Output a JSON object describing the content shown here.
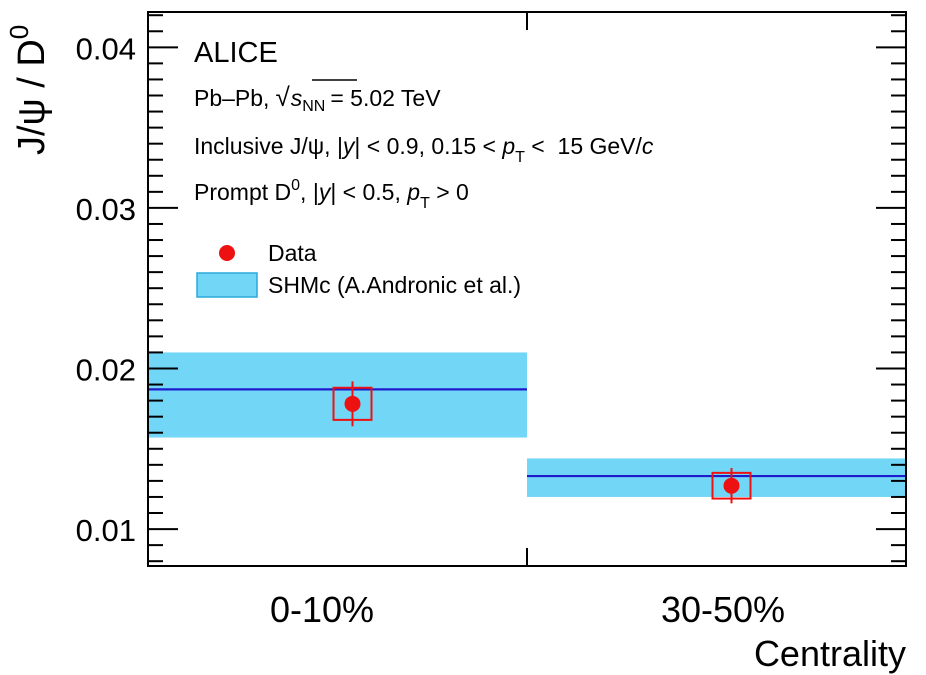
{
  "chart_data": {
    "type": "scatter",
    "experiment": "ALICE",
    "annotations": {
      "system_prefix": "Pb–Pb,",
      "sqrt": "√",
      "s": "s",
      "nn": "NN",
      "energy": "= 5.02 TeV",
      "jpsi_line": {
        "p1": "Inclusive J/ψ, |",
        "y": "y",
        "p2": "| < 0.9, 0.15 < ",
        "p": "p",
        "T": "T",
        "p3": " <  15 GeV/",
        "c": "c"
      },
      "d0_line": {
        "p1": "Prompt D",
        "sup": "0",
        "p2": ", |",
        "y": "y",
        "p3": "| < 0.5, ",
        "p": "p",
        "T": "T",
        "p4": " > 0"
      }
    },
    "ylabel": {
      "main": "J/ψ / D",
      "sup": "0"
    },
    "xlabel": "Centrality",
    "categories": [
      "0-10%",
      "30-50%"
    ],
    "ylim": [
      0.0077,
      0.0422
    ],
    "yticks": [
      0.01,
      0.02,
      0.03,
      0.04
    ],
    "ytick_labels": [
      "0.01",
      "0.02",
      "0.03",
      "0.04"
    ],
    "legend": {
      "position": "upper-left",
      "entries": [
        {
          "label": "Data"
        },
        {
          "label": "SHMc (A.Andronic et al.)"
        }
      ]
    },
    "series": [
      {
        "name": "Data",
        "values": [
          0.0178,
          0.0127
        ],
        "stat_err": [
          0.0014,
          0.0011
        ],
        "syst_err": [
          0.001,
          0.0008
        ],
        "color": "#ee1111"
      },
      {
        "name": "SHMc (A.Andronic et al.)",
        "central": [
          0.0187,
          0.0133
        ],
        "band_low": [
          0.0157,
          0.012
        ],
        "band_high": [
          0.021,
          0.0144
        ],
        "band_color": "#72d6f7",
        "line_color": "#1c1ccc"
      }
    ]
  }
}
